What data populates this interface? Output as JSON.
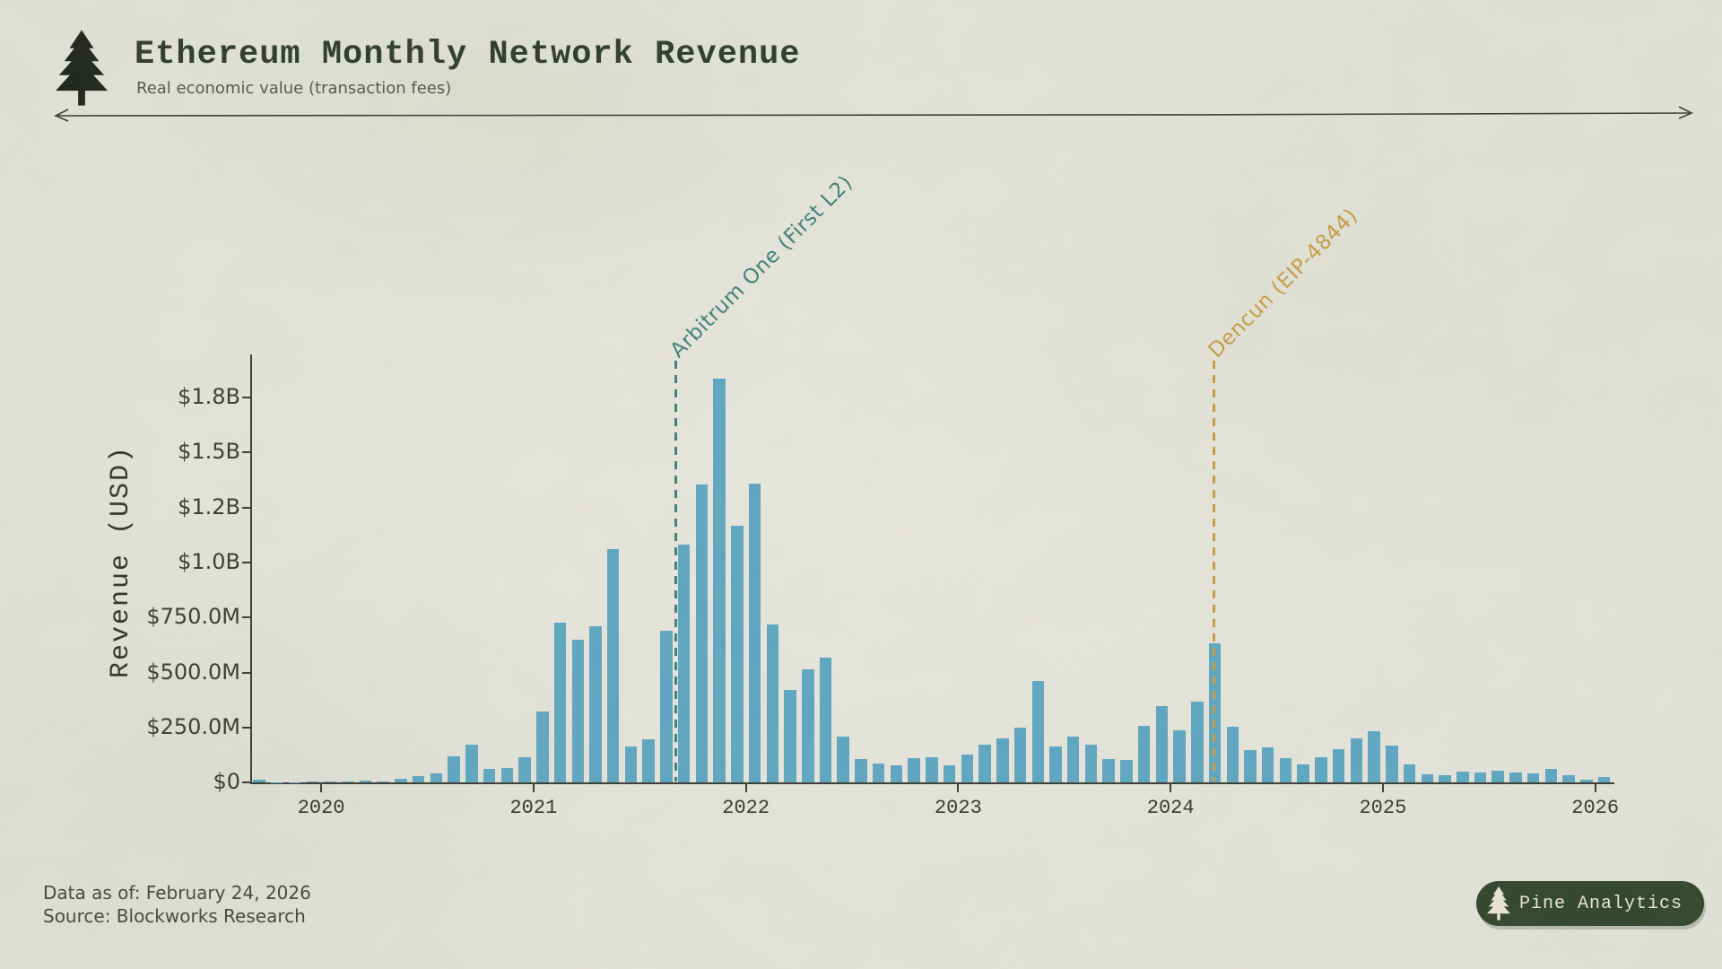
{
  "header": {
    "title": "Ethereum Monthly Network Revenue",
    "subtitle": "Real economic value (transaction fees)",
    "logo_icon": "pine-tree-icon"
  },
  "footer": {
    "data_as_of": "Data as of: February 24, 2026",
    "source": "Source: Blockworks Research"
  },
  "badge": {
    "label": "Pine Analytics",
    "icon": "pine-tree-icon"
  },
  "colors": {
    "paper": "#e9e8df",
    "ink": "#2d392d",
    "bar": "#5da6c2",
    "axis": "#3a3a33",
    "arbitrum_accent": "#3f7f7a",
    "dencun_accent": "#c79b43",
    "badge_bg": "#2f4428",
    "badge_text": "#ece7d3"
  },
  "chart_data": {
    "type": "bar",
    "title": "Ethereum Monthly Network Revenue",
    "xlabel": "",
    "ylabel": "Revenue (USD)",
    "unit": "USD millions",
    "x": [
      "2019-09",
      "2019-10",
      "2019-11",
      "2019-12",
      "2020-01",
      "2020-02",
      "2020-03",
      "2020-04",
      "2020-05",
      "2020-06",
      "2020-07",
      "2020-08",
      "2020-09",
      "2020-10",
      "2020-11",
      "2020-12",
      "2021-01",
      "2021-02",
      "2021-03",
      "2021-04",
      "2021-05",
      "2021-06",
      "2021-07",
      "2021-08",
      "2021-09",
      "2021-10",
      "2021-11",
      "2021-12",
      "2022-01",
      "2022-02",
      "2022-03",
      "2022-04",
      "2022-05",
      "2022-06",
      "2022-07",
      "2022-08",
      "2022-09",
      "2022-10",
      "2022-11",
      "2022-12",
      "2023-01",
      "2023-02",
      "2023-03",
      "2023-04",
      "2023-05",
      "2023-06",
      "2023-07",
      "2023-08",
      "2023-09",
      "2023-10",
      "2023-11",
      "2023-12",
      "2024-01",
      "2024-02",
      "2024-03",
      "2024-04",
      "2024-05",
      "2024-06",
      "2024-07",
      "2024-08",
      "2024-09",
      "2024-10",
      "2024-11",
      "2024-12",
      "2025-01",
      "2025-02",
      "2025-03",
      "2025-04",
      "2025-05",
      "2025-06",
      "2025-07",
      "2025-08",
      "2025-09",
      "2025-10",
      "2025-11",
      "2025-12",
      "2026-01"
    ],
    "values": [
      14,
      2,
      2,
      3,
      4,
      5,
      8,
      5,
      16,
      27,
      40,
      117,
      171,
      61,
      65,
      113,
      322,
      727,
      650,
      710,
      1060,
      165,
      197,
      688,
      1080,
      1355,
      1835,
      1167,
      1357,
      718,
      419,
      514,
      567,
      208,
      107,
      87,
      76,
      110,
      115,
      79,
      126,
      171,
      199,
      250,
      460,
      162,
      210,
      171,
      106,
      101,
      256,
      348,
      235,
      366,
      634,
      253,
      147,
      160,
      110,
      83,
      114,
      151,
      199,
      232,
      168,
      80,
      38,
      34,
      49,
      45,
      54,
      45,
      40,
      62,
      31,
      12,
      24
    ],
    "x_axis": {
      "ticks": [
        2020,
        2021,
        2022,
        2023,
        2024,
        2025,
        2026
      ]
    },
    "y_axis": {
      "range": [
        0,
        1880
      ],
      "ticks": [
        {
          "value": 0,
          "label": "$0"
        },
        {
          "value": 250,
          "label": "$250.0M"
        },
        {
          "value": 500,
          "label": "$500.0M"
        },
        {
          "value": 750,
          "label": "$750.0M"
        },
        {
          "value": 1000,
          "label": "$1.0B"
        },
        {
          "value": 1250,
          "label": "$1.2B"
        },
        {
          "value": 1500,
          "label": "$1.5B"
        },
        {
          "value": 1750,
          "label": "$1.8B"
        }
      ]
    },
    "grid": false,
    "legend": null,
    "annotations": [
      {
        "label": "Arbitrum One (First L2)",
        "date": "2021-08-31",
        "color": "#3f7f7a"
      },
      {
        "label": "Dencun (EIP-4844)",
        "date": "2024-03-13",
        "color": "#c79b43"
      }
    ]
  }
}
